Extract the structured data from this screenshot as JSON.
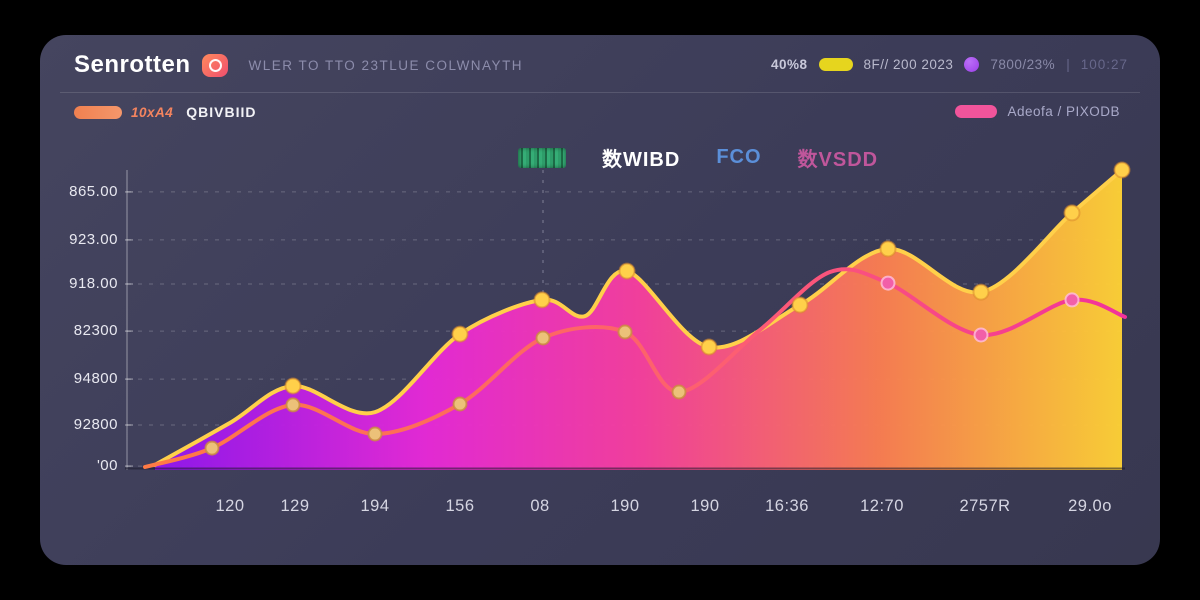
{
  "app": {
    "title": "Senrotten",
    "subtitle": "WLER TO TTO 23TLUE COLWNAYTH",
    "logo_icon": "swirl-camera-icon"
  },
  "header_metrics": {
    "value_1": "40%8",
    "pill_yellow_color": "#e6d51e",
    "value_2": "8F// 200 2023",
    "dot_purple_color": "#a855f7",
    "value_3": "7800/23%",
    "separator": "|",
    "value_4": "100:27"
  },
  "sub_header": {
    "left": {
      "pill_color": "#f4845f",
      "code": "10xA4",
      "label": "QBIVBIID"
    },
    "right": {
      "pill_color": "#f1549b",
      "label": "Adeofa / PIXODB"
    }
  },
  "legend": {
    "badge": {
      "icon": "green-pixel-badge",
      "color": "#2ea36b"
    },
    "items": [
      {
        "label": "数WIBD",
        "color": "#ffffff"
      },
      {
        "label": "FCO",
        "color": "#5b8fd9"
      },
      {
        "label": "数VSDD",
        "color": "#c0569b"
      }
    ]
  },
  "chart_data": {
    "type": "area",
    "title": "",
    "xlabel": "",
    "ylabel": "",
    "grid": true,
    "background": "#3c3c58",
    "vertical_gridline_x_pct": 41.8,
    "y_ticks": [
      {
        "label": "865.00",
        "y_pct": 92.7
      },
      {
        "label": "923.00",
        "y_pct": 76.7
      },
      {
        "label": "918.00",
        "y_pct": 62.0
      },
      {
        "label": "82300",
        "y_pct": 46.3
      },
      {
        "label": "94800",
        "y_pct": 30.3
      },
      {
        "label": "92800",
        "y_pct": 15.0
      },
      {
        "label": "'00",
        "y_pct": 1.3
      }
    ],
    "x_ticks": [
      {
        "label": "120",
        "x_pct": 10.5
      },
      {
        "label": "129",
        "x_pct": 17.0
      },
      {
        "label": "194",
        "x_pct": 25.0
      },
      {
        "label": "156",
        "x_pct": 33.5
      },
      {
        "label": "08",
        "x_pct": 41.5
      },
      {
        "label": "190",
        "x_pct": 50.0
      },
      {
        "label": "190",
        "x_pct": 58.0
      },
      {
        "label": "16:36",
        "x_pct": 66.2
      },
      {
        "label": "12:70",
        "x_pct": 75.7
      },
      {
        "label": "2757R",
        "x_pct": 86.0
      },
      {
        "label": "29.0o",
        "x_pct": 96.5
      }
    ],
    "series": [
      {
        "name": "gradient-area",
        "kind": "area",
        "stroke_color": "#ffd04a",
        "fill_gradient": [
          "#9016ef",
          "#e829d8",
          "#f73f9e",
          "#fb7e51",
          "#ffd235"
        ],
        "marker_color": "#ffd04a",
        "marker_ring": "#d98a2b",
        "points": [
          [
            3.0,
            1.7
          ],
          [
            10.5,
            15.7
          ],
          [
            16.8,
            28.0
          ],
          [
            25.0,
            19.3
          ],
          [
            33.5,
            45.3
          ],
          [
            41.7,
            56.7
          ],
          [
            46.0,
            51.3
          ],
          [
            50.2,
            66.3
          ],
          [
            58.4,
            41.0
          ],
          [
            67.5,
            55.0
          ],
          [
            76.3,
            73.7
          ],
          [
            85.6,
            59.3
          ],
          [
            94.7,
            85.7
          ],
          [
            99.7,
            100.0
          ]
        ],
        "marker_indices": [
          2,
          4,
          5,
          7,
          8,
          9,
          10,
          11,
          12,
          13
        ]
      },
      {
        "name": "orange-pink-line",
        "kind": "line",
        "stroke_gradient": [
          "#ff7a45",
          "#fd5e72",
          "#f2329b"
        ],
        "marker_color_left": "#ecc179",
        "marker_ring_left": "#c98b3f",
        "marker_color_right": "#f25fa8",
        "marker_ring_right": "#ffc0dd",
        "color_split_x_pct": 72,
        "points": [
          [
            2.0,
            1.0
          ],
          [
            8.7,
            7.3
          ],
          [
            16.8,
            21.7
          ],
          [
            25.0,
            12.0
          ],
          [
            33.5,
            22.0
          ],
          [
            41.8,
            44.0
          ],
          [
            50.0,
            46.0
          ],
          [
            55.4,
            26.0
          ],
          [
            63.5,
            46.7
          ],
          [
            70.5,
            66.0
          ],
          [
            76.3,
            62.3
          ],
          [
            85.6,
            45.0
          ],
          [
            94.7,
            56.7
          ],
          [
            100.0,
            51.0
          ]
        ],
        "marker_indices": [
          1,
          2,
          3,
          4,
          5,
          6,
          7,
          10,
          11,
          12
        ]
      }
    ]
  }
}
